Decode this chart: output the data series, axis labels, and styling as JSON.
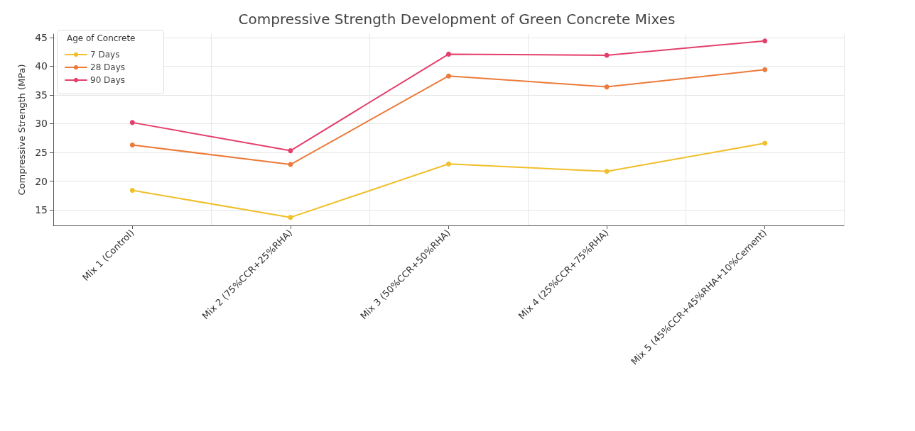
{
  "chart_data": {
    "type": "line",
    "title": "Compressive Strength Development of Green Concrete Mixes",
    "ylabel": "Compressive Strength (MPa)",
    "legend_title": "Age of Concrete",
    "categories": [
      "Mix 1 (Control)",
      "Mix 2 (75%CCR+25%RHA)",
      "Mix 3 (50%CCR+50%RHA)",
      "Mix 4 (25%CCR+75%RHA)",
      "Mix 5 (45%CCR+45%RHA+10%Cement)"
    ],
    "series": [
      {
        "name": "7 Days",
        "color": "#f0bf2a",
        "values": [
          18.4,
          13.7,
          23.0,
          21.7,
          26.6
        ]
      },
      {
        "name": "28 Days",
        "color": "#ec7a3a",
        "values": [
          26.3,
          22.9,
          38.3,
          36.4,
          39.4
        ]
      },
      {
        "name": "90 Days",
        "color": "#e43f6a",
        "values": [
          30.2,
          25.3,
          42.1,
          41.9,
          44.4
        ]
      }
    ],
    "ylim": [
      12.3,
      45.6
    ],
    "yticks": [
      15,
      20,
      25,
      30,
      35,
      40,
      45
    ],
    "grid": true,
    "legend": "top left",
    "marker": "circle",
    "line_style": "solid"
  }
}
